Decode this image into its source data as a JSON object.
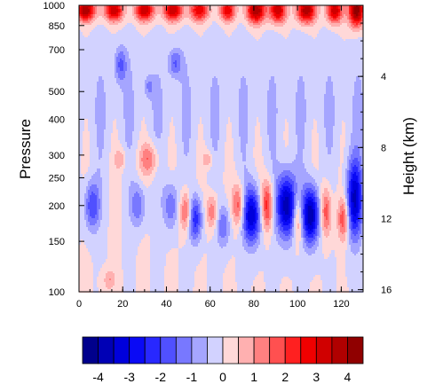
{
  "chart_data": {
    "type": "heatmap",
    "title": "",
    "xlabel": "",
    "ylabel_left": "Pressure",
    "ylabel_right": "Height (km)",
    "x_range": [
      0,
      130
    ],
    "x_ticks": [
      "0",
      "20",
      "40",
      "60",
      "80",
      "100",
      "120"
    ],
    "y_axis_scale": "log",
    "y_range": [
      1000,
      100
    ],
    "y_ticks": [
      "100",
      "150",
      "200",
      "250",
      "300",
      "400",
      "500",
      "700",
      "850",
      "1000"
    ],
    "y_ticks_right": [
      "4",
      "8",
      "12",
      "16"
    ],
    "colorbar": {
      "levels": [
        -4.5,
        -4,
        -3.5,
        -3,
        -2.5,
        -2,
        -1.5,
        -1,
        -0.5,
        0,
        0.5,
        1,
        1.5,
        2,
        2.5,
        3,
        3.5,
        4,
        4.5
      ],
      "labels": [
        "-4",
        "-3",
        "-2",
        "-1",
        "0",
        "1",
        "2",
        "3",
        "4"
      ],
      "colors": [
        "#00008C",
        "#0000B5",
        "#0000DC",
        "#0A0AF5",
        "#2828FF",
        "#5050FF",
        "#7878FF",
        "#A5A5FF",
        "#D2D2FF",
        "#FFD8D8",
        "#FFB0B0",
        "#FF8080",
        "#FF5050",
        "#FF2020",
        "#F00000",
        "#D00000",
        "#B00000",
        "#900000"
      ]
    },
    "features": [
      {
        "sign": "neg",
        "x": 6,
        "p": 200,
        "sx": 2.5,
        "sy": 0.14,
        "amp": -2.0
      },
      {
        "sign": "neg",
        "x": 27,
        "p": 200,
        "sx": 2.5,
        "sy": 0.12,
        "amp": -1.5
      },
      {
        "sign": "neg",
        "x": 42,
        "p": 200,
        "sx": 2.5,
        "sy": 0.14,
        "amp": -1.5
      },
      {
        "sign": "neg",
        "x": 53,
        "p": 180,
        "sx": 2.3,
        "sy": 0.13,
        "amp": -2.5
      },
      {
        "sign": "neg",
        "x": 66,
        "p": 170,
        "sx": 2.3,
        "sy": 0.12,
        "amp": -1.5
      },
      {
        "sign": "neg",
        "x": 79,
        "p": 185,
        "sx": 3.0,
        "sy": 0.16,
        "amp": -3.5
      },
      {
        "sign": "neg",
        "x": 95,
        "p": 200,
        "sx": 3.3,
        "sy": 0.18,
        "amp": -4.0
      },
      {
        "sign": "neg",
        "x": 106,
        "p": 185,
        "sx": 2.8,
        "sy": 0.16,
        "amp": -4.0
      },
      {
        "sign": "neg",
        "x": 126,
        "p": 210,
        "sx": 2.6,
        "sy": 0.22,
        "amp": -3.5
      },
      {
        "sign": "pos",
        "x": 49,
        "p": 190,
        "sx": 2.0,
        "sy": 0.12,
        "amp": 2.0
      },
      {
        "sign": "pos",
        "x": 61,
        "p": 190,
        "sx": 2.0,
        "sy": 0.1,
        "amp": 1.5
      },
      {
        "sign": "pos",
        "x": 73,
        "p": 200,
        "sx": 2.0,
        "sy": 0.12,
        "amp": 2.0
      },
      {
        "sign": "pos",
        "x": 86,
        "p": 200,
        "sx": 2.0,
        "sy": 0.14,
        "amp": 2.5
      },
      {
        "sign": "pos",
        "x": 100,
        "p": 180,
        "sx": 1.6,
        "sy": 0.14,
        "amp": 2.0
      },
      {
        "sign": "pos",
        "x": 113,
        "p": 190,
        "sx": 1.8,
        "sy": 0.14,
        "amp": 2.0
      },
      {
        "sign": "pos",
        "x": 121,
        "p": 180,
        "sx": 1.8,
        "sy": 0.12,
        "amp": 2.0
      },
      {
        "sign": "pos",
        "x": 14,
        "p": 110,
        "sx": 2.0,
        "sy": 0.06,
        "amp": 1.0
      },
      {
        "sign": "pos",
        "x": 32,
        "p": 290,
        "sx": 3.0,
        "sy": 0.09,
        "amp": 1.5
      },
      {
        "sign": "pos",
        "x": 19,
        "p": 290,
        "sx": 1.8,
        "sy": 0.06,
        "amp": 1.0
      },
      {
        "sign": "pos",
        "x": 59,
        "p": 290,
        "sx": 1.6,
        "sy": 0.05,
        "amp": 1.0
      },
      {
        "sign": "neg",
        "x": 19,
        "p": 620,
        "sx": 2.0,
        "sy": 0.1,
        "amp": -1.5
      },
      {
        "sign": "neg",
        "x": 44,
        "p": 630,
        "sx": 2.2,
        "sy": 0.08,
        "amp": -1.5
      },
      {
        "sign": "neg",
        "x": 32,
        "p": 520,
        "sx": 1.5,
        "sy": 0.06,
        "amp": -1.0
      },
      {
        "sign": "pos",
        "x": 3,
        "p": 960,
        "sx": 3.0,
        "sy": 0.06,
        "amp": 4.0
      },
      {
        "sign": "pos",
        "x": 16,
        "p": 960,
        "sx": 3.0,
        "sy": 0.06,
        "amp": 3.5
      },
      {
        "sign": "pos",
        "x": 30,
        "p": 960,
        "sx": 3.0,
        "sy": 0.06,
        "amp": 3.5
      },
      {
        "sign": "pos",
        "x": 43,
        "p": 960,
        "sx": 3.0,
        "sy": 0.06,
        "amp": 3.5
      },
      {
        "sign": "pos",
        "x": 55,
        "p": 960,
        "sx": 3.0,
        "sy": 0.06,
        "amp": 3.0
      },
      {
        "sign": "pos",
        "x": 68,
        "p": 960,
        "sx": 2.5,
        "sy": 0.06,
        "amp": 3.0
      },
      {
        "sign": "pos",
        "x": 81,
        "p": 960,
        "sx": 3.0,
        "sy": 0.07,
        "amp": 4.0
      },
      {
        "sign": "pos",
        "x": 91,
        "p": 960,
        "sx": 2.6,
        "sy": 0.07,
        "amp": 3.5
      },
      {
        "sign": "pos",
        "x": 104,
        "p": 960,
        "sx": 3.0,
        "sy": 0.07,
        "amp": 4.0
      },
      {
        "sign": "pos",
        "x": 117,
        "p": 960,
        "sx": 2.5,
        "sy": 0.07,
        "amp": 3.5
      },
      {
        "sign": "pos",
        "x": 127,
        "p": 960,
        "sx": 2.5,
        "sy": 0.09,
        "amp": 4.5
      }
    ]
  }
}
